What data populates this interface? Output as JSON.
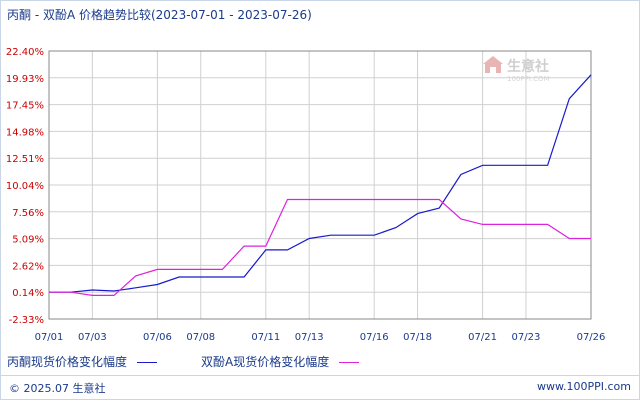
{
  "title": "丙酮 - 双酚A 价格趋势比较(2023-07-01 - 2023-07-26)",
  "watermark": {
    "name": "生意社",
    "url": "100PPI.COM"
  },
  "footer": {
    "copyright": "© 2025.07 生意社",
    "site": "www.100PPI.com"
  },
  "colors": {
    "series1": "#1a1acc",
    "series2": "#dd22dd",
    "ytick": "#cc0000",
    "xtick": "#1a3a8a",
    "grid": "#d0d0d0"
  },
  "chart_data": {
    "type": "line",
    "title": "丙酮 - 双酚A 价格趋势比较(2023-07-01 - 2023-07-26)",
    "x": [
      "07/01",
      "07/02",
      "07/03",
      "07/04",
      "07/05",
      "07/06",
      "07/07",
      "07/08",
      "07/09",
      "07/10",
      "07/11",
      "07/12",
      "07/13",
      "07/14",
      "07/15",
      "07/16",
      "07/17",
      "07/18",
      "07/19",
      "07/20",
      "07/21",
      "07/22",
      "07/23",
      "07/24",
      "07/25",
      "07/26"
    ],
    "xtick_labels": [
      "07/01",
      "07/03",
      "07/06",
      "07/08",
      "07/11",
      "07/13",
      "07/16",
      "07/18",
      "07/21",
      "07/23",
      "07/26"
    ],
    "ytick_labels": [
      "22.40%",
      "19.93%",
      "17.45%",
      "14.98%",
      "12.51%",
      "10.04%",
      "7.56%",
      "5.09%",
      "2.62%",
      "0.14%",
      "-2.33%"
    ],
    "ylim": [
      -2.33,
      22.4
    ],
    "grid": true,
    "legend_position": "bottom",
    "series": [
      {
        "name": "丙酮现货价格变化幅度",
        "color": "#1a1acc",
        "values": [
          0.14,
          0.14,
          0.35,
          0.25,
          0.55,
          0.85,
          1.55,
          1.55,
          1.55,
          1.55,
          4.05,
          4.05,
          5.1,
          5.4,
          5.4,
          5.4,
          6.1,
          7.4,
          7.9,
          11.0,
          11.85,
          11.85,
          11.85,
          11.85,
          18.0,
          20.2
        ]
      },
      {
        "name": "双酚A现货价格变化幅度",
        "color": "#dd22dd",
        "values": [
          0.14,
          0.14,
          -0.15,
          -0.15,
          1.65,
          2.25,
          2.25,
          2.25,
          2.25,
          4.4,
          4.4,
          8.7,
          8.7,
          8.7,
          8.7,
          8.7,
          8.7,
          8.7,
          8.7,
          6.9,
          6.4,
          6.4,
          6.4,
          6.4,
          5.1,
          5.1
        ]
      }
    ]
  }
}
